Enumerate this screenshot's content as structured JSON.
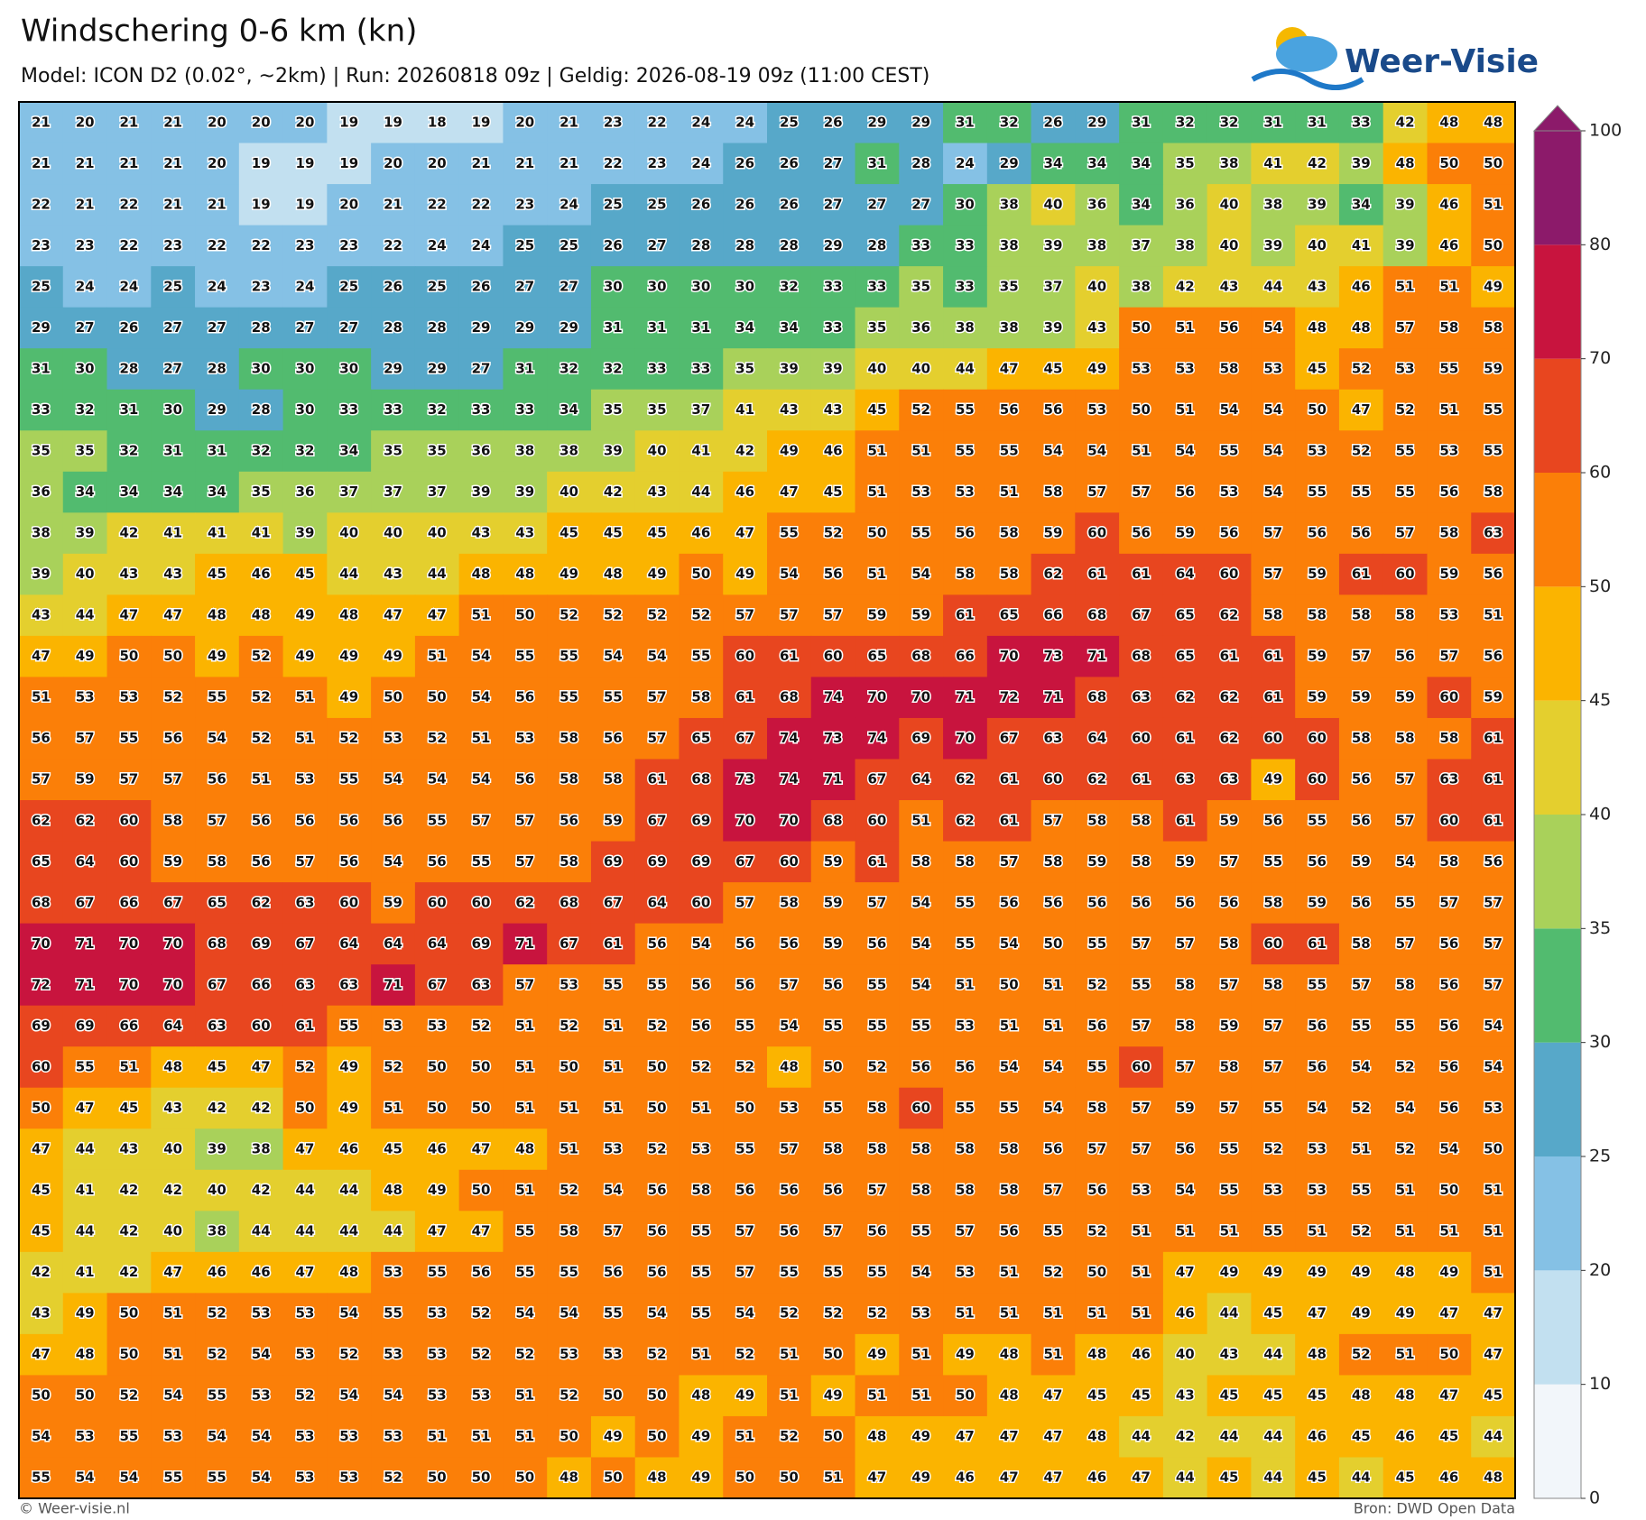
{
  "header": {
    "title": "Windschering 0-6 km (kn)",
    "subtitle": "Model: ICON D2 (0.02°, ~2km)  |  Run: 20260818 09z  |  Geldig: 2026-08-19 09z (11:00 CEST)",
    "logo": "Weer-Visie"
  },
  "footer": {
    "left": "© Weer-visie.nl",
    "right": "Bron: DWD Open Data"
  },
  "colorbar": {
    "levels": [
      0,
      10,
      20,
      25,
      30,
      35,
      40,
      45,
      50,
      60,
      70,
      80,
      100
    ],
    "colors": [
      "#f2f6fa",
      "#c2e0f0",
      "#85c1e5",
      "#57a8c9",
      "#52bb6f",
      "#a9d15a",
      "#e4cf2e",
      "#fbb400",
      "#fb7f08",
      "#e8461f",
      "#c8143e",
      "#8c1a6a"
    ]
  },
  "grid": {
    "rows": [
      [
        21,
        20,
        21,
        21,
        20,
        20,
        20,
        19,
        19,
        18,
        19,
        20,
        21,
        23,
        22,
        24,
        24,
        25,
        26,
        29,
        29,
        31,
        32,
        26,
        29,
        31,
        32,
        32,
        31,
        31,
        33,
        42,
        48,
        48
      ],
      [
        21,
        21,
        21,
        21,
        20,
        19,
        19,
        19,
        20,
        20,
        21,
        21,
        21,
        22,
        23,
        24,
        26,
        26,
        27,
        31,
        28,
        24,
        29,
        34,
        34,
        34,
        35,
        38,
        41,
        42,
        39,
        48,
        50,
        50
      ],
      [
        22,
        21,
        22,
        21,
        21,
        19,
        19,
        20,
        21,
        22,
        22,
        23,
        24,
        25,
        25,
        26,
        26,
        26,
        27,
        27,
        27,
        30,
        38,
        40,
        36,
        34,
        36,
        40,
        38,
        39,
        34,
        39,
        46,
        51
      ],
      [
        23,
        23,
        22,
        23,
        22,
        22,
        23,
        23,
        22,
        24,
        24,
        25,
        25,
        26,
        27,
        28,
        28,
        28,
        29,
        28,
        33,
        33,
        38,
        39,
        38,
        37,
        38,
        40,
        39,
        40,
        41,
        39,
        46,
        50
      ],
      [
        25,
        24,
        24,
        25,
        24,
        23,
        24,
        25,
        26,
        25,
        26,
        27,
        27,
        30,
        30,
        30,
        30,
        32,
        33,
        33,
        35,
        33,
        35,
        37,
        40,
        38,
        42,
        43,
        44,
        43,
        46,
        51,
        51,
        49
      ],
      [
        29,
        27,
        26,
        27,
        27,
        28,
        27,
        27,
        28,
        28,
        29,
        29,
        29,
        31,
        31,
        31,
        34,
        34,
        33,
        35,
        36,
        38,
        38,
        39,
        43,
        50,
        51,
        56,
        54,
        48,
        48,
        57,
        58,
        58
      ],
      [
        31,
        30,
        28,
        27,
        28,
        30,
        30,
        30,
        29,
        29,
        27,
        31,
        32,
        32,
        33,
        33,
        35,
        39,
        39,
        40,
        40,
        44,
        47,
        45,
        49,
        53,
        53,
        58,
        53,
        45,
        52,
        53,
        55,
        59
      ],
      [
        33,
        32,
        31,
        30,
        29,
        28,
        30,
        33,
        33,
        32,
        33,
        33,
        34,
        35,
        35,
        37,
        41,
        43,
        43,
        45,
        52,
        55,
        56,
        56,
        53,
        50,
        51,
        54,
        54,
        50,
        47,
        52,
        51,
        55
      ],
      [
        35,
        35,
        32,
        31,
        31,
        32,
        32,
        34,
        35,
        35,
        36,
        38,
        38,
        39,
        40,
        41,
        42,
        49,
        46,
        51,
        51,
        55,
        55,
        54,
        54,
        51,
        54,
        55,
        54,
        53,
        52,
        55,
        53,
        55
      ],
      [
        36,
        34,
        34,
        34,
        34,
        35,
        36,
        37,
        37,
        37,
        39,
        39,
        40,
        42,
        43,
        44,
        46,
        47,
        45,
        51,
        53,
        53,
        51,
        58,
        57,
        57,
        56,
        53,
        54,
        55,
        55,
        55,
        56,
        58
      ],
      [
        38,
        39,
        42,
        41,
        41,
        41,
        39,
        40,
        40,
        40,
        43,
        43,
        45,
        45,
        45,
        46,
        47,
        55,
        52,
        50,
        55,
        56,
        58,
        59,
        60,
        56,
        59,
        56,
        57,
        56,
        56,
        57,
        58,
        63
      ],
      [
        39,
        40,
        43,
        43,
        45,
        46,
        45,
        44,
        43,
        44,
        48,
        48,
        49,
        48,
        49,
        50,
        49,
        54,
        56,
        51,
        54,
        58,
        58,
        62,
        61,
        61,
        64,
        60,
        57,
        59,
        61,
        60,
        59,
        56
      ],
      [
        43,
        44,
        47,
        47,
        48,
        48,
        49,
        48,
        47,
        47,
        51,
        50,
        52,
        52,
        52,
        52,
        57,
        57,
        57,
        59,
        59,
        61,
        65,
        66,
        68,
        67,
        65,
        62,
        58,
        58,
        58,
        58,
        53,
        51
      ],
      [
        47,
        49,
        50,
        50,
        49,
        52,
        49,
        49,
        49,
        51,
        54,
        55,
        55,
        54,
        54,
        55,
        60,
        61,
        60,
        65,
        68,
        66,
        70,
        73,
        71,
        68,
        65,
        61,
        61,
        59,
        57,
        56,
        57,
        56
      ],
      [
        51,
        53,
        53,
        52,
        55,
        52,
        51,
        49,
        50,
        50,
        54,
        56,
        55,
        55,
        57,
        58,
        61,
        68,
        74,
        70,
        70,
        71,
        72,
        71,
        68,
        63,
        62,
        62,
        61,
        59,
        59,
        59,
        60,
        59
      ],
      [
        56,
        57,
        55,
        56,
        54,
        52,
        51,
        52,
        53,
        52,
        51,
        53,
        58,
        56,
        57,
        65,
        67,
        74,
        73,
        74,
        69,
        70,
        67,
        63,
        64,
        60,
        61,
        62,
        60,
        60,
        58,
        58,
        58,
        61
      ],
      [
        57,
        59,
        57,
        57,
        56,
        51,
        53,
        55,
        54,
        54,
        54,
        56,
        58,
        58,
        61,
        68,
        73,
        74,
        71,
        67,
        64,
        62,
        61,
        60,
        62,
        61,
        63,
        63,
        49,
        60,
        56,
        57,
        63,
        61
      ],
      [
        62,
        62,
        60,
        58,
        57,
        56,
        56,
        56,
        56,
        55,
        57,
        57,
        56,
        59,
        67,
        69,
        70,
        70,
        68,
        60,
        51,
        62,
        61,
        57,
        58,
        58,
        61,
        59,
        56,
        55,
        56,
        57,
        60,
        61
      ],
      [
        65,
        64,
        60,
        59,
        58,
        56,
        57,
        56,
        54,
        56,
        55,
        57,
        58,
        69,
        69,
        69,
        67,
        60,
        59,
        61,
        58,
        58,
        57,
        58,
        59,
        58,
        59,
        57,
        55,
        56,
        59,
        54,
        58,
        56
      ],
      [
        68,
        67,
        66,
        67,
        65,
        62,
        63,
        60,
        59,
        60,
        60,
        62,
        68,
        67,
        64,
        60,
        57,
        58,
        59,
        57,
        54,
        55,
        56,
        56,
        56,
        56,
        56,
        56,
        58,
        59,
        56,
        55,
        57,
        57
      ],
      [
        70,
        71,
        70,
        70,
        68,
        69,
        67,
        64,
        64,
        64,
        69,
        71,
        67,
        61,
        56,
        54,
        56,
        56,
        59,
        56,
        54,
        55,
        54,
        50,
        55,
        57,
        57,
        58,
        60,
        61,
        58,
        57,
        56,
        57
      ],
      [
        72,
        71,
        70,
        70,
        67,
        66,
        63,
        63,
        71,
        67,
        63,
        57,
        53,
        55,
        55,
        56,
        56,
        57,
        56,
        55,
        54,
        51,
        50,
        51,
        52,
        55,
        58,
        57,
        58,
        55,
        57,
        58,
        56,
        57
      ],
      [
        69,
        69,
        66,
        64,
        63,
        60,
        61,
        55,
        53,
        53,
        52,
        51,
        52,
        51,
        52,
        56,
        55,
        54,
        55,
        55,
        55,
        53,
        51,
        51,
        56,
        57,
        58,
        59,
        57,
        56,
        55,
        55,
        56,
        54
      ],
      [
        60,
        55,
        51,
        48,
        45,
        47,
        52,
        49,
        52,
        50,
        50,
        51,
        50,
        51,
        50,
        52,
        52,
        48,
        50,
        52,
        56,
        56,
        54,
        54,
        55,
        60,
        57,
        58,
        57,
        56,
        54,
        52,
        56,
        54
      ],
      [
        50,
        47,
        45,
        43,
        42,
        42,
        50,
        49,
        51,
        50,
        50,
        51,
        51,
        51,
        50,
        51,
        50,
        53,
        55,
        58,
        60,
        55,
        55,
        54,
        58,
        57,
        59,
        57,
        55,
        54,
        52,
        54,
        56,
        53
      ],
      [
        47,
        44,
        43,
        40,
        39,
        38,
        47,
        46,
        45,
        46,
        47,
        48,
        51,
        53,
        52,
        53,
        55,
        57,
        58,
        58,
        58,
        58,
        58,
        56,
        57,
        57,
        56,
        55,
        52,
        53,
        51,
        52,
        54,
        50
      ],
      [
        45,
        41,
        42,
        42,
        40,
        42,
        44,
        44,
        48,
        49,
        50,
        51,
        52,
        54,
        56,
        58,
        56,
        56,
        56,
        57,
        58,
        58,
        58,
        57,
        56,
        53,
        54,
        55,
        53,
        53,
        55,
        51,
        50,
        51
      ],
      [
        45,
        44,
        42,
        40,
        38,
        44,
        44,
        44,
        44,
        47,
        47,
        55,
        58,
        57,
        56,
        55,
        57,
        56,
        57,
        56,
        55,
        57,
        56,
        55,
        52,
        51,
        51,
        51,
        55,
        51,
        52,
        51,
        51,
        51
      ],
      [
        42,
        41,
        42,
        47,
        46,
        46,
        47,
        48,
        53,
        55,
        56,
        55,
        55,
        56,
        56,
        55,
        57,
        55,
        55,
        55,
        54,
        53,
        51,
        52,
        50,
        51,
        47,
        49,
        49,
        49,
        49,
        48,
        49,
        51
      ],
      [
        43,
        49,
        50,
        51,
        52,
        53,
        53,
        54,
        55,
        53,
        52,
        54,
        54,
        55,
        54,
        55,
        54,
        52,
        52,
        52,
        53,
        51,
        51,
        51,
        51,
        51,
        46,
        44,
        45,
        47,
        49,
        49,
        47,
        47
      ],
      [
        47,
        48,
        50,
        51,
        52,
        54,
        53,
        52,
        53,
        53,
        52,
        52,
        53,
        53,
        52,
        51,
        52,
        51,
        50,
        49,
        51,
        49,
        48,
        51,
        48,
        46,
        40,
        43,
        44,
        48,
        52,
        51,
        50,
        47
      ],
      [
        50,
        50,
        52,
        54,
        55,
        53,
        52,
        54,
        54,
        53,
        53,
        51,
        52,
        50,
        50,
        48,
        49,
        51,
        49,
        51,
        51,
        50,
        48,
        47,
        45,
        45,
        43,
        45,
        45,
        45,
        48,
        48,
        47,
        45
      ],
      [
        54,
        53,
        55,
        53,
        54,
        54,
        53,
        53,
        53,
        51,
        51,
        51,
        50,
        49,
        50,
        49,
        51,
        52,
        50,
        48,
        49,
        47,
        47,
        47,
        48,
        44,
        42,
        44,
        44,
        46,
        45,
        46,
        45,
        44
      ],
      [
        55,
        54,
        54,
        55,
        55,
        54,
        53,
        53,
        52,
        50,
        50,
        50,
        48,
        50,
        48,
        49,
        50,
        50,
        51,
        47,
        49,
        46,
        47,
        47,
        46,
        47,
        44,
        45,
        44,
        45,
        44,
        45,
        46,
        48
      ]
    ]
  }
}
